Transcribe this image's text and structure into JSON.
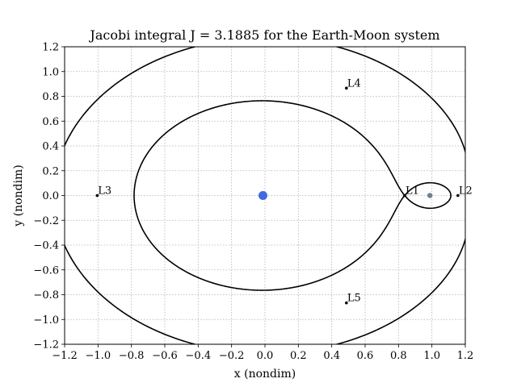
{
  "chart_data": {
    "type": "line",
    "title": "Jacobi integral J = 3.1885 for the Earth-Moon system",
    "xlabel": "x (nondim)",
    "ylabel": "y (nondim)",
    "xlim": [
      -1.2,
      1.2
    ],
    "ylim": [
      -1.2,
      1.2
    ],
    "xticks": [
      -1.2,
      -1.0,
      -0.8,
      -0.6,
      -0.4,
      -0.2,
      0.0,
      0.2,
      0.4,
      0.6,
      0.8,
      1.0,
      1.2
    ],
    "xtick_labels": [
      "−1.2",
      "−1.0",
      "−0.8",
      "−0.6",
      "−0.4",
      "−0.2",
      "0.0",
      "0.2",
      "0.4",
      "0.6",
      "0.8",
      "1.0",
      "1.2"
    ],
    "yticks": [
      -1.2,
      -1.0,
      -0.8,
      -0.6,
      -0.4,
      -0.2,
      0.0,
      0.2,
      0.4,
      0.6,
      0.8,
      1.0,
      1.2
    ],
    "ytick_labels": [
      "−1.2",
      "−1.0",
      "−0.8",
      "−0.6",
      "−0.4",
      "−0.2",
      "0.0",
      "0.2",
      "0.4",
      "0.6",
      "0.8",
      "1.0",
      "1.2"
    ],
    "grid": true,
    "legend": "none",
    "mass_ratio_mu": 0.01215,
    "jacobi_constant": 3.1885,
    "bodies": [
      {
        "x": -0.01215,
        "y": 0.0,
        "color": "#4169e1"
      },
      {
        "x": 0.98785,
        "y": 0.0,
        "color": "#708090"
      }
    ],
    "lagrange_points": [
      {
        "label": "L1",
        "x": 0.8369,
        "y": 0.0
      },
      {
        "label": "L2",
        "x": 1.1557,
        "y": 0.0
      },
      {
        "label": "L3",
        "x": -1.0051,
        "y": 0.0
      },
      {
        "label": "L4",
        "x": 0.4879,
        "y": 0.866
      },
      {
        "label": "L5",
        "x": 0.4879,
        "y": -0.866
      }
    ],
    "curve_color": "#000000",
    "marker_color": "#000000"
  }
}
